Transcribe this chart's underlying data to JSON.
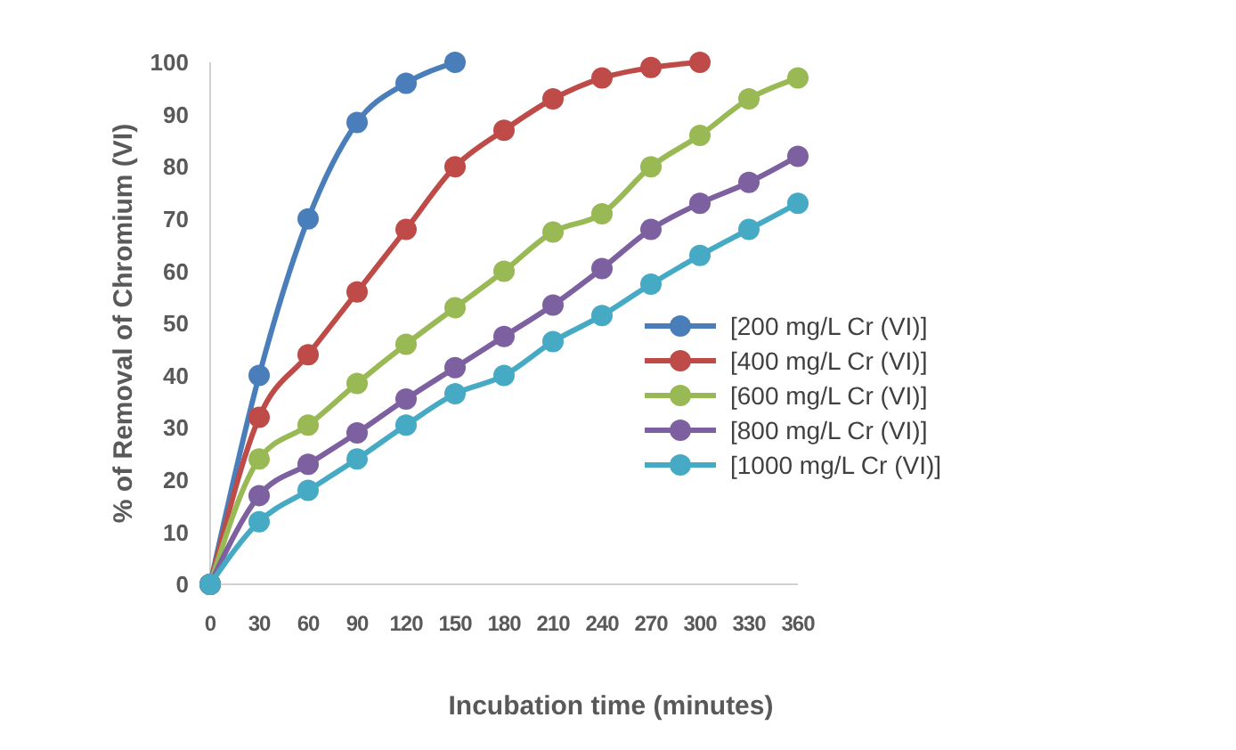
{
  "chart_data": {
    "type": "line",
    "xlabel": "Incubation time (minutes)",
    "ylabel": "% of Removal of Chromium (VI)",
    "x": [
      0,
      30,
      60,
      90,
      120,
      150,
      180,
      210,
      240,
      270,
      300,
      330,
      360
    ],
    "xlim": [
      0,
      360
    ],
    "xticks": [
      0,
      30,
      60,
      90,
      120,
      150,
      180,
      210,
      240,
      270,
      300,
      330,
      360
    ],
    "ylim": [
      0,
      100
    ],
    "yticks": [
      0,
      10,
      20,
      30,
      40,
      50,
      60,
      70,
      80,
      90,
      100
    ],
    "grid": false,
    "legend": "right",
    "marker": "circle",
    "line_style": "solid",
    "series": [
      {
        "name": "[200 mg/L Cr (VI)]",
        "color": "#4a7ebb",
        "values": [
          0,
          40,
          70,
          88.5,
          96,
          100,
          null,
          null,
          null,
          null,
          null,
          null,
          null
        ]
      },
      {
        "name": "[400 mg/L Cr (VI)]",
        "color": "#be4b48",
        "values": [
          0,
          32,
          44,
          56,
          68,
          80,
          87,
          93,
          97,
          99,
          100,
          null,
          null
        ]
      },
      {
        "name": "[600 mg/L Cr (VI)]",
        "color": "#98b954",
        "values": [
          0,
          24,
          30.5,
          38.5,
          46,
          53,
          60,
          67.5,
          71,
          80,
          86,
          93,
          97
        ]
      },
      {
        "name": "[800 mg/L Cr (VI)]",
        "color": "#7d60a0",
        "values": [
          0,
          17,
          23,
          29,
          35.5,
          41.5,
          47.5,
          53.5,
          60.5,
          68,
          73,
          77,
          82
        ]
      },
      {
        "name": "[1000 mg/L Cr (VI)]",
        "color": "#46aac5",
        "values": [
          0,
          12,
          18,
          24,
          30.5,
          36.5,
          40,
          46.5,
          51.5,
          57.5,
          63,
          68,
          73
        ]
      }
    ]
  }
}
